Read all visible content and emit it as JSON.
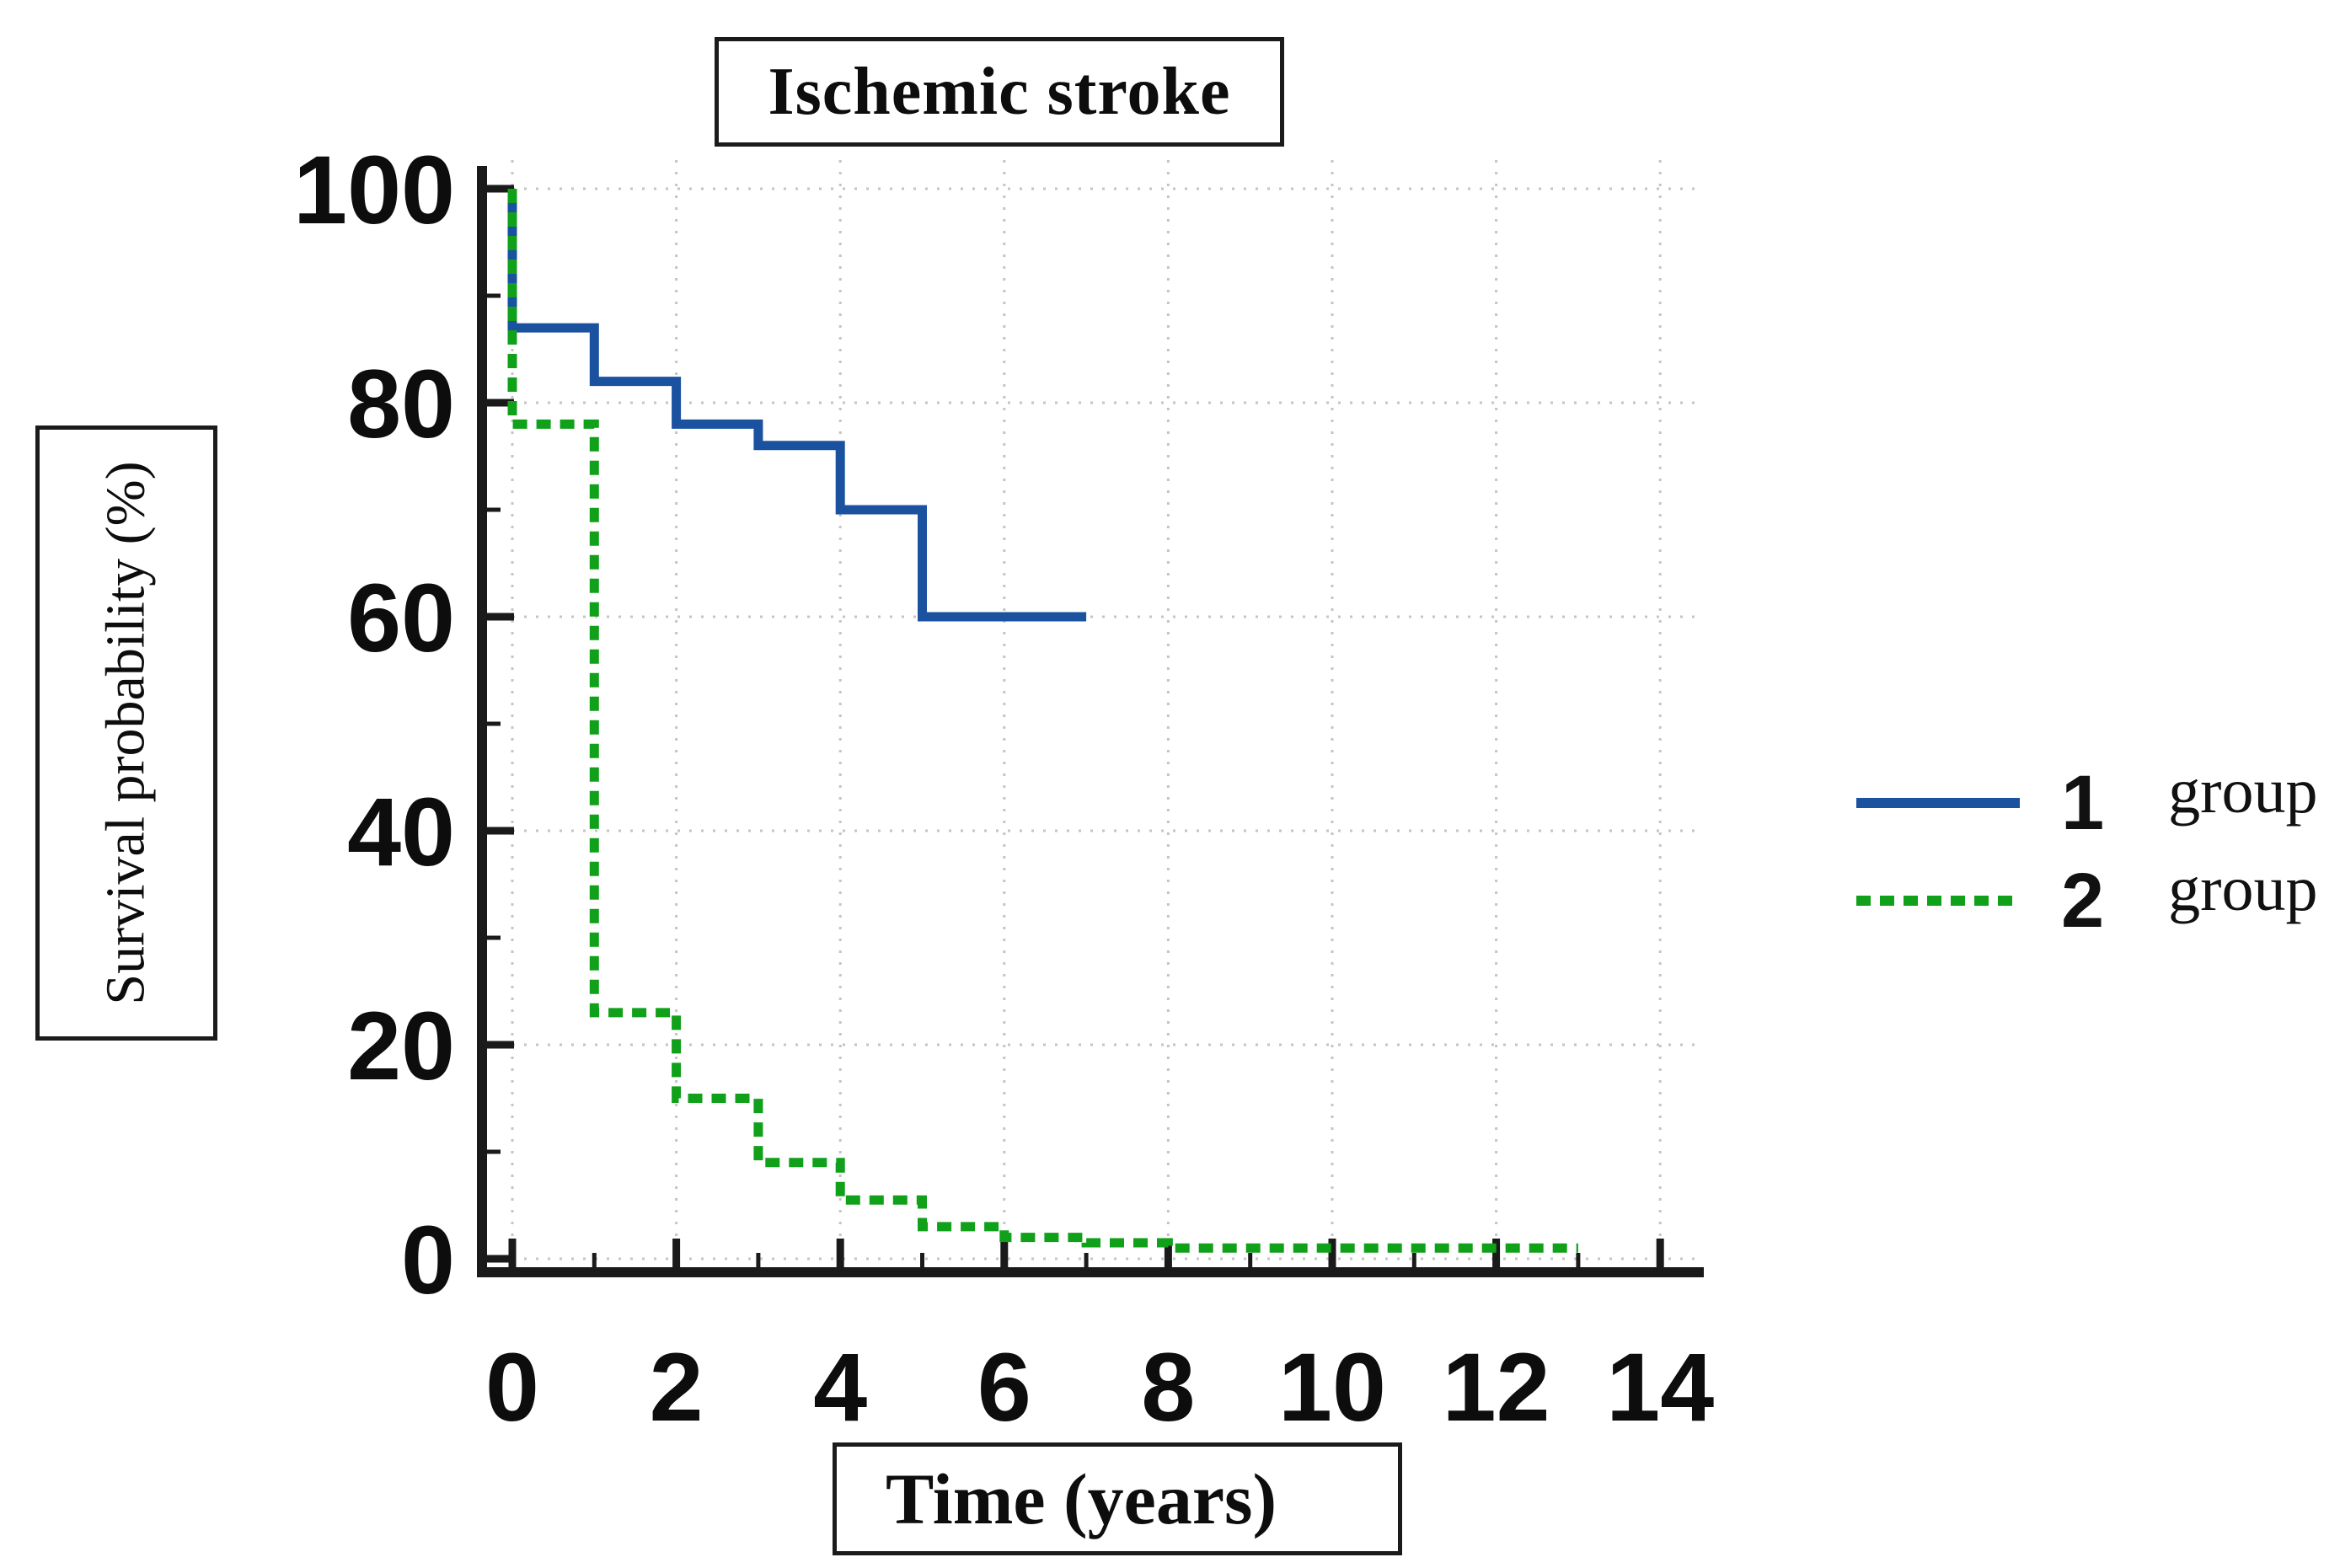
{
  "chart_data": {
    "type": "line",
    "subtype": "kaplan-meier-step",
    "title": "Ischemic stroke",
    "xlabel": "Time (years)",
    "ylabel": "Survival probability (%)",
    "xlim": [
      0,
      14
    ],
    "ylim": [
      0,
      100
    ],
    "xticks": [
      0,
      2,
      4,
      6,
      8,
      10,
      12,
      14
    ],
    "yticks": [
      0,
      20,
      40,
      60,
      80,
      100
    ],
    "minor_xticks": [
      1,
      3,
      5,
      7,
      9,
      11,
      13
    ],
    "minor_yticks": [
      10,
      30,
      50,
      70,
      90
    ],
    "grid": true,
    "grid_style": "dotted",
    "grid_color": "#c4c4c4",
    "axis_color": "#1a1a1a",
    "legend_position": "right-outside",
    "series": [
      {
        "name": "1 group",
        "legend_number": "1",
        "legend_word": "group",
        "color": "#1a52a0",
        "line_style": "solid",
        "steps": [
          [
            0,
            100
          ],
          [
            0,
            87
          ],
          [
            1,
            87
          ],
          [
            1,
            82
          ],
          [
            2,
            82
          ],
          [
            2,
            78
          ],
          [
            3,
            78
          ],
          [
            3,
            76
          ],
          [
            4,
            76
          ],
          [
            4,
            70
          ],
          [
            5,
            70
          ],
          [
            5,
            60
          ],
          [
            7,
            60
          ]
        ]
      },
      {
        "name": "2 group",
        "legend_number": "2",
        "legend_word": "group",
        "color": "#10a01a",
        "line_style": "dashed",
        "steps": [
          [
            0,
            100
          ],
          [
            0,
            78
          ],
          [
            1,
            78
          ],
          [
            1,
            23
          ],
          [
            2,
            23
          ],
          [
            2,
            15
          ],
          [
            3,
            15
          ],
          [
            3,
            9
          ],
          [
            4,
            9
          ],
          [
            4,
            5.5
          ],
          [
            5,
            5.5
          ],
          [
            5,
            3
          ],
          [
            6,
            3
          ],
          [
            6,
            2
          ],
          [
            7,
            2
          ],
          [
            7,
            1.5
          ],
          [
            8,
            1.5
          ],
          [
            8,
            1
          ],
          [
            13,
            1
          ]
        ]
      }
    ]
  }
}
